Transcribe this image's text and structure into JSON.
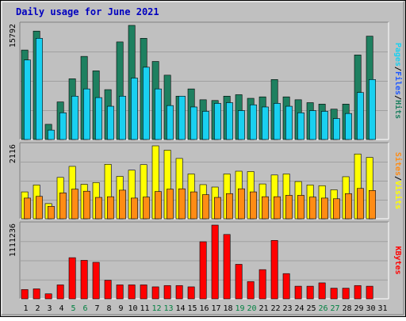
{
  "chart_data": {
    "type": "bar",
    "title": "Daily usage for June 2021",
    "categories": [
      "1",
      "2",
      "3",
      "4",
      "5",
      "6",
      "7",
      "8",
      "9",
      "10",
      "11",
      "12",
      "13",
      "14",
      "15",
      "16",
      "17",
      "18",
      "19",
      "20",
      "21",
      "22",
      "23",
      "24",
      "25",
      "26",
      "27",
      "28",
      "29",
      "30",
      "31"
    ],
    "weekend_days": [
      "5",
      "6",
      "12",
      "13",
      "19",
      "20",
      "26",
      "27"
    ],
    "panels": [
      {
        "id": "hits-files-pages",
        "ymax_label": "15792",
        "ymax": 15792,
        "series": [
          {
            "name": "Hits",
            "color": "#1e8060",
            "values": [
              12380,
              15000,
              2100,
              5200,
              8400,
              11500,
              9500,
              6900,
              13500,
              15792,
              14000,
              10800,
              8900,
              6000,
              7000,
              5500,
              5400,
              6000,
              6200,
              5700,
              5900,
              8300,
              5900,
              5500,
              5100,
              4900,
              4200,
              4900,
              11700,
              14300,
              0
            ]
          },
          {
            "name": "Files",
            "color": "#1e58ff",
            "values": [
              0,
              0,
              0,
              0,
              0,
              0,
              0,
              0,
              0,
              0,
              0,
              0,
              0,
              0,
              0,
              0,
              0,
              0,
              0,
              0,
              0,
              0,
              0,
              0,
              0,
              0,
              0,
              0,
              0,
              0,
              0
            ]
          },
          {
            "name": "Pages",
            "color": "#19d0f0",
            "values": [
              11000,
              14000,
              1300,
              3700,
              6000,
              7000,
              5800,
              4600,
              6000,
              8500,
              10000,
              7000,
              4700,
              6000,
              4500,
              3900,
              5000,
              5100,
              4000,
              4800,
              4500,
              5000,
              4600,
              3700,
              4000,
              3900,
              2900,
              3600,
              6500,
              8300,
              0
            ]
          }
        ]
      },
      {
        "id": "visits-sites",
        "ymax_label": "2116",
        "ymax": 2116,
        "series": [
          {
            "name": "Visits",
            "color": "#ffff00",
            "values": [
              780,
              980,
              440,
              1200,
              1520,
              1000,
              1050,
              1580,
              1230,
              1410,
              1570,
              2116,
              1990,
              1750,
              1300,
              990,
              920,
              1300,
              1380,
              1370,
              1010,
              1270,
              1300,
              1080,
              980,
              960,
              840,
              1220,
              1880,
              1780,
              0
            ]
          },
          {
            "name": "Sites",
            "color": "#ff8c14",
            "values": [
              600,
              650,
              360,
              750,
              860,
              800,
              620,
              640,
              830,
              600,
              630,
              790,
              860,
              870,
              780,
              700,
              620,
              730,
              870,
              780,
              640,
              640,
              680,
              680,
              630,
              600,
              580,
              730,
              880,
              820,
              0
            ]
          }
        ]
      },
      {
        "id": "kbytes",
        "ymax_label": "1111236",
        "ymax": 1111236,
        "series": [
          {
            "name": "KBytes",
            "color": "#ff0000",
            "values": [
              140000,
              150000,
              75000,
              210000,
              620000,
              580000,
              550000,
              280000,
              210000,
              210000,
              210000,
              180000,
              200000,
              200000,
              180000,
              860000,
              1111236,
              970000,
              520000,
              260000,
              440000,
              880000,
              380000,
              190000,
              190000,
              240000,
              160000,
              160000,
              200000,
              190000,
              0
            ]
          }
        ]
      }
    ]
  }
}
